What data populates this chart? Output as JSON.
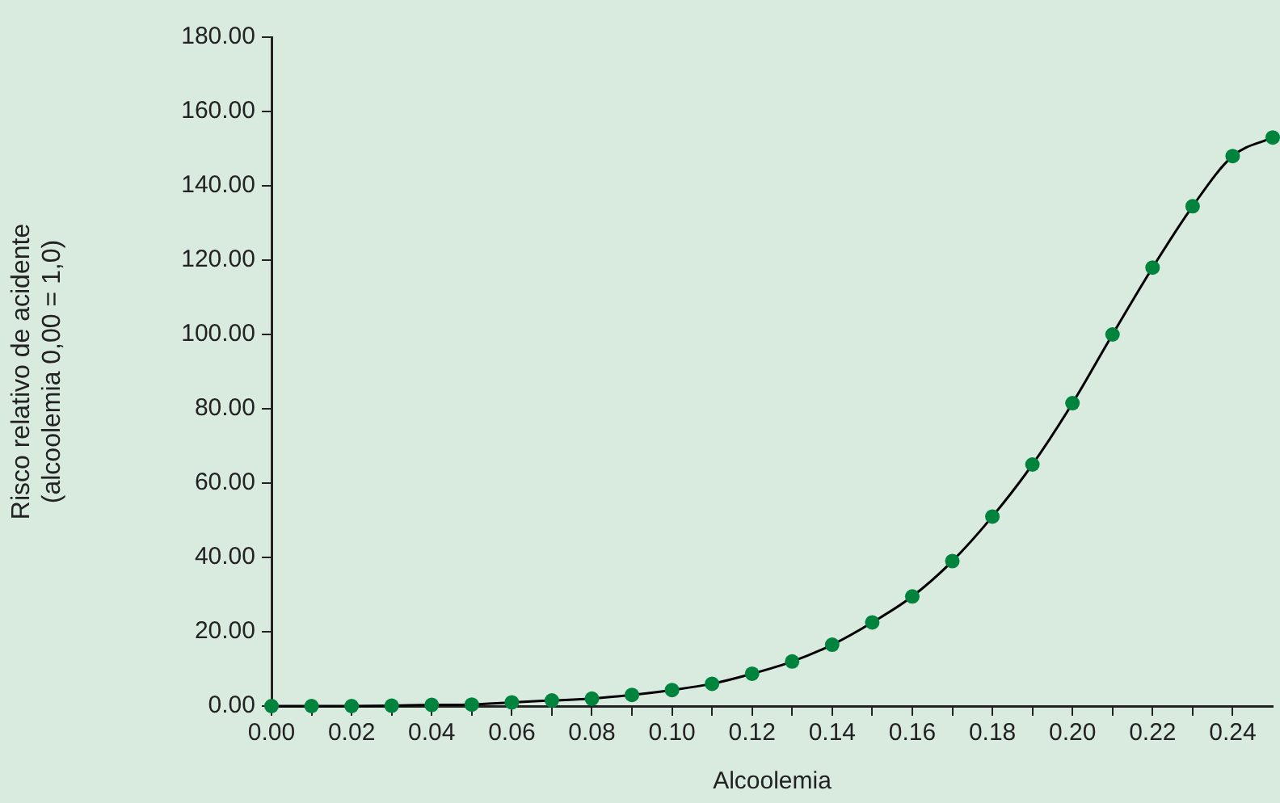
{
  "chart_data": {
    "type": "line",
    "xlabel": "Alcoolemia",
    "ylabel": "Risco relativo de acidente\n(alcoolemia 0,00 = 1,0)",
    "x": [
      0,
      0.01,
      0.02,
      0.03,
      0.04,
      0.05,
      0.06,
      0.07,
      0.08,
      0.09,
      0.1,
      0.11,
      0.12,
      0.13,
      0.14,
      0.15,
      0.16,
      0.17,
      0.18,
      0.19,
      0.2,
      0.21,
      0.22,
      0.23,
      0.24,
      0.25
    ],
    "series": [
      {
        "color": "#00843d",
        "values": [
          0,
          0,
          0,
          0.1,
          0.3,
          0.4,
          1,
          1.5,
          2,
          3,
          4.3,
          6,
          8.7,
          12,
          16.5,
          22.5,
          29.5,
          39,
          51,
          65,
          81.5,
          100,
          118,
          134.5,
          148,
          153
        ]
      }
    ],
    "xlim": [
      0,
      0.25
    ],
    "xticks": [
      {
        "value": 0,
        "label": "0.00"
      },
      {
        "value": 0.01,
        "label": null
      },
      {
        "value": 0.02,
        "label": "0.02"
      },
      {
        "value": 0.03,
        "label": null
      },
      {
        "value": 0.04,
        "label": "0.04"
      },
      {
        "value": 0.05,
        "label": null
      },
      {
        "value": 0.06,
        "label": "0.06"
      },
      {
        "value": 0.07,
        "label": null
      },
      {
        "value": 0.08,
        "label": "0.08"
      },
      {
        "value": 0.09,
        "label": null
      },
      {
        "value": 0.1,
        "label": "0.10"
      },
      {
        "value": 0.11,
        "label": null
      },
      {
        "value": 0.12,
        "label": "0.12"
      },
      {
        "value": 0.13,
        "label": null
      },
      {
        "value": 0.14,
        "label": "0.14"
      },
      {
        "value": 0.15,
        "label": null
      },
      {
        "value": 0.16,
        "label": "0.16"
      },
      {
        "value": 0.17,
        "label": null
      },
      {
        "value": 0.18,
        "label": "0.18"
      },
      {
        "value": 0.19,
        "label": null
      },
      {
        "value": 0.2,
        "label": "0.20"
      },
      {
        "value": 0.21,
        "label": null
      },
      {
        "value": 0.22,
        "label": "0.22"
      },
      {
        "value": 0.23,
        "label": null
      },
      {
        "value": 0.24,
        "label": "0.24"
      }
    ],
    "ylim": [
      0,
      180
    ],
    "yticks": [
      {
        "value": 0,
        "label": "0.00"
      },
      {
        "value": 20,
        "label": "20.00"
      },
      {
        "value": 40,
        "label": "40.00"
      },
      {
        "value": 60,
        "label": "60.00"
      },
      {
        "value": 80,
        "label": "80.00"
      },
      {
        "value": 100,
        "label": "100.00"
      },
      {
        "value": 120,
        "label": "120.00"
      },
      {
        "value": 140,
        "label": "140.00"
      },
      {
        "value": 160,
        "label": "160.00"
      },
      {
        "value": 180,
        "label": "180.00"
      }
    ],
    "grid": false,
    "legend": false,
    "marker": "circle",
    "line_style": "solid"
  }
}
